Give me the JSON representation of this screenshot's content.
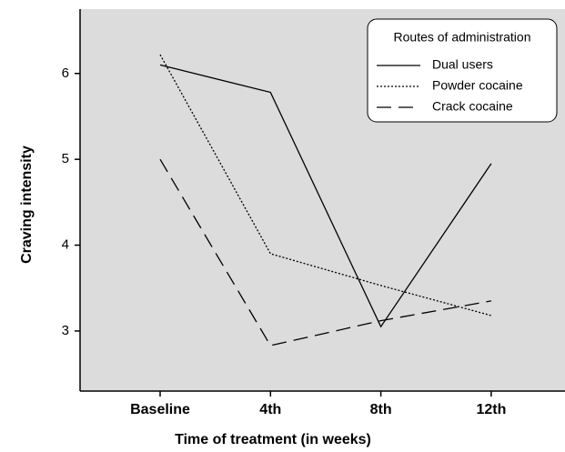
{
  "chart_data": {
    "type": "line",
    "x_label": "Time of treatment (in weeks)",
    "y_label": "Craving intensity",
    "categories": [
      "Baseline",
      "4th",
      "8th",
      "12th"
    ],
    "series": [
      {
        "name": "Dual users",
        "color": "#000000",
        "dash": "solid",
        "values": [
          6.1,
          5.78,
          3.05,
          4.95
        ]
      },
      {
        "name": "Powder cocaine",
        "color": "#000000",
        "dash": "dotted",
        "values": [
          6.22,
          3.9,
          3.53,
          3.18
        ]
      },
      {
        "name": "Crack cocaine",
        "color": "#000000",
        "dash": "dashed",
        "values": [
          5.0,
          2.83,
          3.12,
          3.35
        ]
      }
    ],
    "ylim": [
      2.3,
      6.75
    ],
    "yticks": [
      3,
      4,
      5,
      6
    ],
    "legend_title": "Routes of administration",
    "legend_position": "upper right",
    "background": "#dcdcdc"
  }
}
